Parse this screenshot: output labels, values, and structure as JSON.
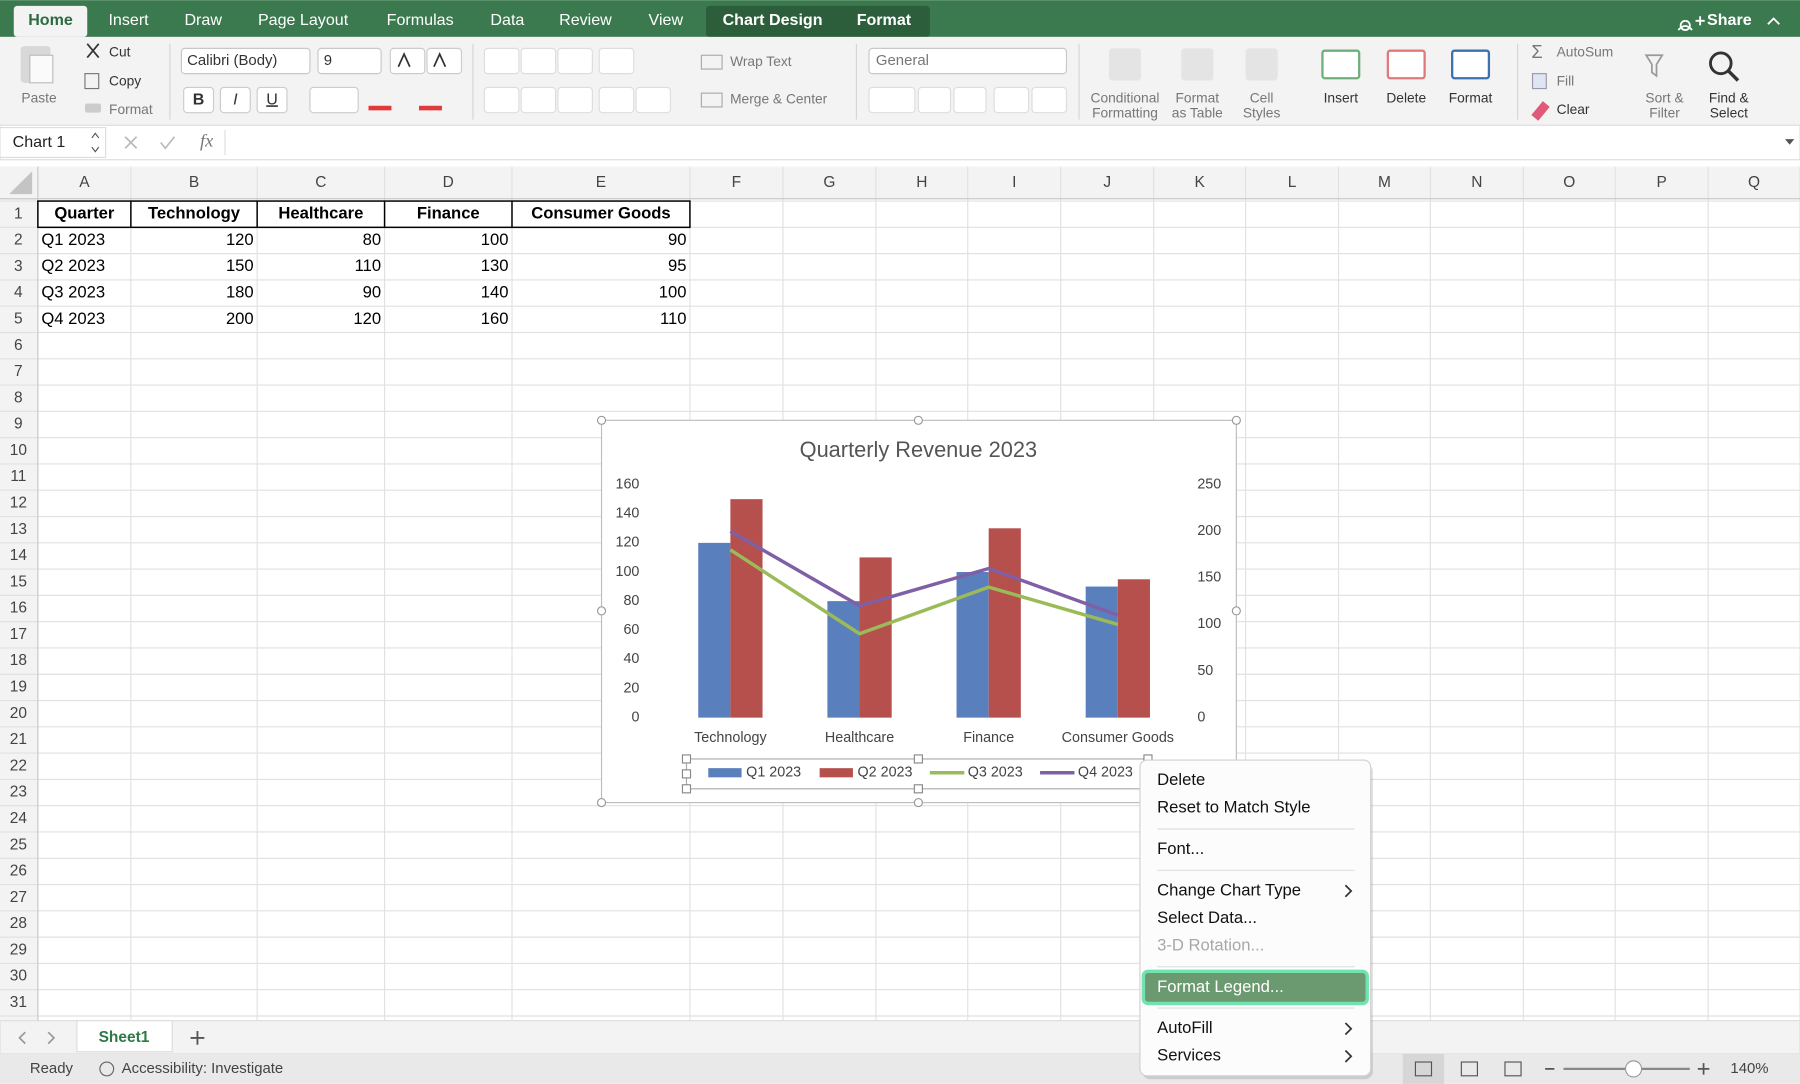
{
  "ribbon": {
    "tabs": [
      "Home",
      "Insert",
      "Draw",
      "Page Layout",
      "Formulas",
      "Data",
      "Review",
      "View",
      "Chart Design",
      "Format"
    ],
    "share": "Share",
    "clipboard": {
      "paste": "Paste",
      "cut": "Cut",
      "copy": "Copy",
      "format": "Format"
    },
    "font": {
      "name": "Calibri (Body)",
      "size": "9",
      "styles": [
        "B",
        "I",
        "U"
      ]
    },
    "alignment": {
      "wrap": "Wrap Text",
      "merge": "Merge & Center"
    },
    "number": {
      "format": "General"
    },
    "styles": [
      [
        "Conditional",
        "Formatting"
      ],
      [
        "Format",
        "as Table"
      ],
      [
        "Cell",
        "Styles"
      ]
    ],
    "cells": [
      "Insert",
      "Delete",
      "Format"
    ],
    "editing": {
      "autosum": "AutoSum",
      "fill": "Fill",
      "clear": "Clear",
      "sort": [
        "Sort &",
        "Filter"
      ],
      "find": [
        "Find &",
        "Select"
      ]
    }
  },
  "formula_bar": {
    "name_box": "Chart 1",
    "fx": "fx"
  },
  "sheet": {
    "columns": [
      "A",
      "B",
      "C",
      "D",
      "E",
      "F",
      "G",
      "H",
      "I",
      "J",
      "K",
      "L",
      "M",
      "N",
      "O",
      "P",
      "Q"
    ],
    "row_numbers": [
      1,
      2,
      3,
      4,
      5,
      6,
      7,
      8,
      9,
      10,
      11,
      12,
      13,
      14,
      15,
      16,
      17,
      18,
      19,
      20,
      21,
      22,
      23,
      24,
      25,
      26,
      27,
      28,
      29,
      30,
      31
    ],
    "cells": [
      [
        "Quarter",
        "Technology",
        "Healthcare",
        "Finance",
        "Consumer Goods"
      ],
      [
        "Q1 2023",
        120,
        80,
        100,
        90
      ],
      [
        "Q2 2023",
        150,
        110,
        130,
        95
      ],
      [
        "Q3 2023",
        180,
        90,
        140,
        100
      ],
      [
        "Q4 2023",
        200,
        120,
        160,
        110
      ]
    ]
  },
  "chart_data": {
    "type": "bar",
    "title": "Quarterly Revenue 2023",
    "categories": [
      "Technology",
      "Healthcare",
      "Finance",
      "Consumer Goods"
    ],
    "series": [
      {
        "name": "Q1 2023",
        "color": "#5a7fbd",
        "values": [
          120,
          80,
          100,
          90
        ]
      },
      {
        "name": "Q2 2023",
        "color": "#b5504d",
        "values": [
          150,
          110,
          130,
          95
        ]
      },
      {
        "name": "Q3 2023",
        "type": "line",
        "axis": "y2",
        "color": "#9bbb59",
        "values": [
          180,
          90,
          140,
          100
        ]
      },
      {
        "name": "Q4 2023",
        "type": "line",
        "axis": "y2",
        "color": "#7f5fa5",
        "values": [
          200,
          120,
          160,
          110
        ]
      }
    ],
    "ylim": [
      0,
      160
    ],
    "yticks": [
      0,
      20,
      40,
      60,
      80,
      100,
      120,
      140,
      160
    ],
    "y2lim": [
      0,
      250
    ],
    "y2ticks": [
      0,
      50,
      100,
      150,
      200,
      250
    ],
    "grid": false,
    "legend": "bottom"
  },
  "context_menu": {
    "items": [
      {
        "label": "Delete"
      },
      {
        "label": "Reset to Match Style"
      },
      {
        "label": "Font..."
      },
      {
        "label": "Change Chart Type",
        "submenu": true
      },
      {
        "label": "Select Data..."
      },
      {
        "label": "3-D Rotation...",
        "disabled": true
      },
      {
        "label": "Format Legend...",
        "selected": true
      },
      {
        "label": "AutoFill",
        "submenu": true
      },
      {
        "label": "Services",
        "submenu": true
      }
    ]
  },
  "sheet_tabs": {
    "tabs": [
      "Sheet1"
    ]
  },
  "status": {
    "ready": "Ready",
    "accessibility": "Accessibility: Investigate",
    "zoom": "140%"
  }
}
